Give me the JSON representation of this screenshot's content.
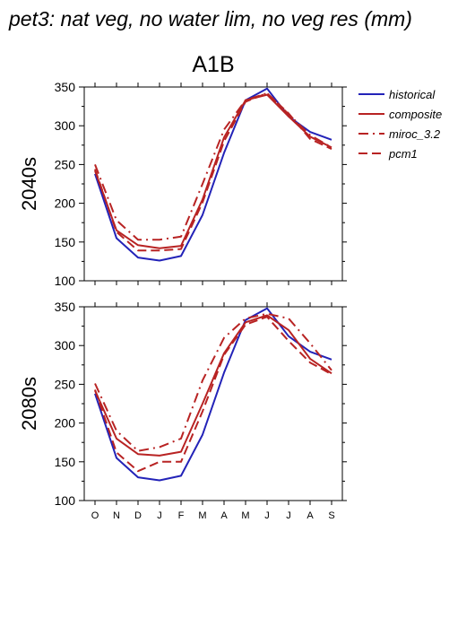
{
  "figure": {
    "title": "pet3: nat veg, no water lim, no veg res (mm)",
    "scenario": "A1B"
  },
  "chart_data": [
    {
      "type": "line",
      "row_label": "2040s",
      "x": [
        "O",
        "N",
        "D",
        "J",
        "F",
        "M",
        "A",
        "M",
        "J",
        "J",
        "A",
        "S"
      ],
      "ylim": [
        100,
        350
      ],
      "yticks": [
        100,
        150,
        200,
        250,
        300,
        350
      ],
      "series": [
        {
          "name": "historical",
          "color": "#2323b8",
          "style": "solid",
          "values": [
            238,
            155,
            130,
            126,
            132,
            185,
            265,
            333,
            348,
            312,
            292,
            282
          ]
        },
        {
          "name": "composite",
          "color": "#b82323",
          "style": "solid",
          "values": [
            242,
            165,
            146,
            142,
            145,
            205,
            285,
            333,
            340,
            312,
            286,
            272
          ]
        },
        {
          "name": "miroc_3.2",
          "color": "#b82323",
          "style": "dashdot",
          "values": [
            250,
            178,
            153,
            153,
            157,
            225,
            295,
            333,
            342,
            315,
            288,
            272
          ]
        },
        {
          "name": "pcm1",
          "color": "#b82323",
          "style": "dashed",
          "values": [
            244,
            163,
            139,
            139,
            141,
            201,
            280,
            331,
            342,
            316,
            283,
            270
          ]
        }
      ]
    },
    {
      "type": "line",
      "row_label": "2080s",
      "x": [
        "O",
        "N",
        "D",
        "J",
        "F",
        "M",
        "A",
        "M",
        "J",
        "J",
        "A",
        "S"
      ],
      "ylim": [
        100,
        350
      ],
      "yticks": [
        100,
        150,
        200,
        250,
        300,
        350
      ],
      "series": [
        {
          "name": "historical",
          "color": "#2323b8",
          "style": "solid",
          "values": [
            238,
            155,
            130,
            126,
            132,
            185,
            265,
            333,
            348,
            312,
            292,
            282
          ]
        },
        {
          "name": "composite",
          "color": "#b82323",
          "style": "solid",
          "values": [
            242,
            180,
            160,
            158,
            163,
            225,
            290,
            330,
            339,
            320,
            283,
            264
          ]
        },
        {
          "name": "miroc_3.2",
          "color": "#b82323",
          "style": "dashdot",
          "values": [
            251,
            190,
            164,
            169,
            180,
            255,
            310,
            335,
            341,
            335,
            303,
            268
          ]
        },
        {
          "name": "pcm1",
          "color": "#b82323",
          "style": "dashed",
          "values": [
            243,
            162,
            138,
            150,
            150,
            215,
            288,
            327,
            337,
            306,
            278,
            263
          ]
        }
      ]
    }
  ]
}
